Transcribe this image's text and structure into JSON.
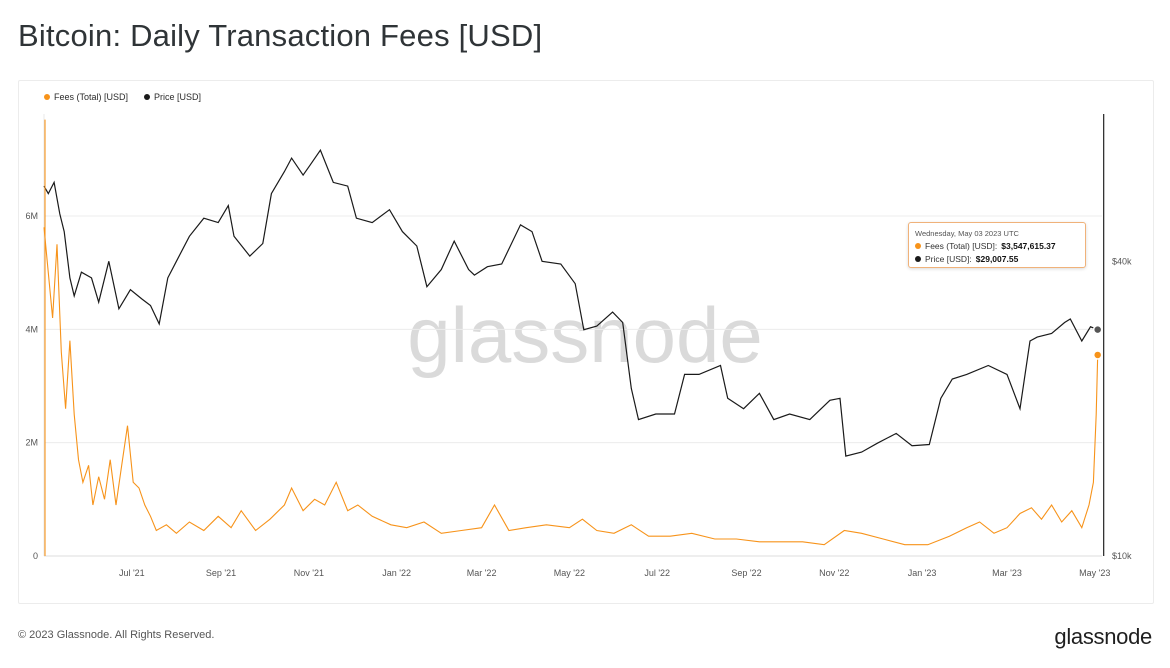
{
  "title": "Bitcoin: Daily Transaction Fees [USD]",
  "copyright": "© 2023 Glassnode. All Rights Reserved.",
  "logo_text": "glassnode",
  "watermark": "glassnode",
  "colors": {
    "fees": "#f7931a",
    "price": "#1a1a1a",
    "grid": "#ececec",
    "axis_text": "#555555"
  },
  "tooltip": {
    "date": "Wednesday, May 03 2023 UTC",
    "fees_label": "Fees (Total) [USD]:",
    "fees_value": "$3,547,615.37",
    "price_label": "Price [USD]:",
    "price_value": "$29,007.55"
  },
  "chart_data": {
    "type": "line",
    "title": "Bitcoin: Daily Transaction Fees [USD]",
    "legend_position": "top-left",
    "grid": true,
    "x_ticks": [
      "Jul '21",
      "Sep '21",
      "Nov '21",
      "Jan '22",
      "Mar '22",
      "May '22",
      "Jul '22",
      "Sep '22",
      "Nov '22",
      "Jan '23",
      "Mar '23",
      "May '23"
    ],
    "y_left": {
      "ticks": [
        "0",
        "2M",
        "4M",
        "6M"
      ],
      "tick_values": [
        0,
        2000000,
        4000000,
        6000000
      ],
      "range": [
        0,
        7800000
      ]
    },
    "y_right": {
      "scale": "log",
      "ticks": [
        "$10k",
        "$40k"
      ],
      "tick_values": [
        10000,
        40000
      ],
      "range": [
        10000,
        80000
      ]
    },
    "x_range": [
      "2021-05-01",
      "2023-05-06"
    ],
    "series": [
      {
        "name": "Fees (Total) [USD]",
        "axis": "left",
        "points": [
          [
            "2021-05-01",
            5800000
          ],
          [
            "2021-05-04",
            5000000
          ],
          [
            "2021-05-07",
            4200000
          ],
          [
            "2021-05-10",
            5500000
          ],
          [
            "2021-05-13",
            3600000
          ],
          [
            "2021-05-16",
            2600000
          ],
          [
            "2021-05-19",
            3800000
          ],
          [
            "2021-05-22",
            2500000
          ],
          [
            "2021-05-25",
            1700000
          ],
          [
            "2021-05-28",
            1300000
          ],
          [
            "2021-06-01",
            1600000
          ],
          [
            "2021-06-04",
            900000
          ],
          [
            "2021-06-08",
            1400000
          ],
          [
            "2021-06-12",
            1000000
          ],
          [
            "2021-06-16",
            1700000
          ],
          [
            "2021-06-20",
            900000
          ],
          [
            "2021-06-24",
            1600000
          ],
          [
            "2021-06-28",
            2300000
          ],
          [
            "2021-07-02",
            1300000
          ],
          [
            "2021-07-06",
            1200000
          ],
          [
            "2021-07-10",
            900000
          ],
          [
            "2021-07-14",
            700000
          ],
          [
            "2021-07-18",
            450000
          ],
          [
            "2021-07-25",
            550000
          ],
          [
            "2021-08-01",
            400000
          ],
          [
            "2021-08-10",
            600000
          ],
          [
            "2021-08-20",
            450000
          ],
          [
            "2021-08-30",
            700000
          ],
          [
            "2021-09-08",
            500000
          ],
          [
            "2021-09-15",
            800000
          ],
          [
            "2021-09-25",
            450000
          ],
          [
            "2021-10-05",
            650000
          ],
          [
            "2021-10-15",
            900000
          ],
          [
            "2021-10-20",
            1200000
          ],
          [
            "2021-10-28",
            800000
          ],
          [
            "2021-11-05",
            1000000
          ],
          [
            "2021-11-12",
            900000
          ],
          [
            "2021-11-20",
            1300000
          ],
          [
            "2021-11-28",
            800000
          ],
          [
            "2021-12-05",
            900000
          ],
          [
            "2021-12-15",
            700000
          ],
          [
            "2021-12-28",
            550000
          ],
          [
            "2022-01-08",
            500000
          ],
          [
            "2022-01-20",
            600000
          ],
          [
            "2022-02-01",
            400000
          ],
          [
            "2022-02-15",
            450000
          ],
          [
            "2022-03-01",
            500000
          ],
          [
            "2022-03-10",
            900000
          ],
          [
            "2022-03-20",
            450000
          ],
          [
            "2022-04-01",
            500000
          ],
          [
            "2022-04-15",
            550000
          ],
          [
            "2022-05-01",
            500000
          ],
          [
            "2022-05-10",
            650000
          ],
          [
            "2022-05-20",
            450000
          ],
          [
            "2022-06-01",
            400000
          ],
          [
            "2022-06-13",
            550000
          ],
          [
            "2022-06-25",
            350000
          ],
          [
            "2022-07-10",
            350000
          ],
          [
            "2022-07-25",
            400000
          ],
          [
            "2022-08-10",
            300000
          ],
          [
            "2022-08-25",
            300000
          ],
          [
            "2022-09-10",
            250000
          ],
          [
            "2022-09-25",
            250000
          ],
          [
            "2022-10-10",
            250000
          ],
          [
            "2022-10-25",
            200000
          ],
          [
            "2022-11-08",
            450000
          ],
          [
            "2022-11-20",
            400000
          ],
          [
            "2022-12-05",
            300000
          ],
          [
            "2022-12-20",
            200000
          ],
          [
            "2023-01-05",
            200000
          ],
          [
            "2023-01-20",
            350000
          ],
          [
            "2023-02-01",
            500000
          ],
          [
            "2023-02-10",
            600000
          ],
          [
            "2023-02-20",
            400000
          ],
          [
            "2023-03-01",
            500000
          ],
          [
            "2023-03-10",
            750000
          ],
          [
            "2023-03-18",
            850000
          ],
          [
            "2023-03-25",
            650000
          ],
          [
            "2023-04-01",
            900000
          ],
          [
            "2023-04-08",
            600000
          ],
          [
            "2023-04-15",
            800000
          ],
          [
            "2023-04-22",
            500000
          ],
          [
            "2023-04-27",
            900000
          ],
          [
            "2023-04-30",
            1300000
          ],
          [
            "2023-05-02",
            2500000
          ],
          [
            "2023-05-03",
            3547615
          ]
        ]
      },
      {
        "name": "Price [USD]",
        "axis": "right",
        "points": [
          [
            "2021-05-01",
            57000
          ],
          [
            "2021-05-04",
            55000
          ],
          [
            "2021-05-08",
            58000
          ],
          [
            "2021-05-12",
            50000
          ],
          [
            "2021-05-15",
            46000
          ],
          [
            "2021-05-19",
            37000
          ],
          [
            "2021-05-22",
            34000
          ],
          [
            "2021-05-27",
            38000
          ],
          [
            "2021-06-03",
            37000
          ],
          [
            "2021-06-08",
            33000
          ],
          [
            "2021-06-15",
            40000
          ],
          [
            "2021-06-22",
            32000
          ],
          [
            "2021-06-30",
            35000
          ],
          [
            "2021-07-08",
            33500
          ],
          [
            "2021-07-14",
            32500
          ],
          [
            "2021-07-20",
            29800
          ],
          [
            "2021-07-26",
            37000
          ],
          [
            "2021-08-01",
            40000
          ],
          [
            "2021-08-10",
            45000
          ],
          [
            "2021-08-20",
            49000
          ],
          [
            "2021-08-30",
            48000
          ],
          [
            "2021-09-06",
            52000
          ],
          [
            "2021-09-10",
            45000
          ],
          [
            "2021-09-21",
            41000
          ],
          [
            "2021-09-30",
            43500
          ],
          [
            "2021-10-06",
            55000
          ],
          [
            "2021-10-15",
            61000
          ],
          [
            "2021-10-20",
            65000
          ],
          [
            "2021-10-28",
            60000
          ],
          [
            "2021-11-02",
            63000
          ],
          [
            "2021-11-09",
            67500
          ],
          [
            "2021-11-18",
            58000
          ],
          [
            "2021-11-28",
            57000
          ],
          [
            "2021-12-04",
            49000
          ],
          [
            "2021-12-15",
            48000
          ],
          [
            "2021-12-27",
            51000
          ],
          [
            "2022-01-05",
            46000
          ],
          [
            "2022-01-15",
            43000
          ],
          [
            "2022-01-22",
            35500
          ],
          [
            "2022-02-01",
            38500
          ],
          [
            "2022-02-10",
            44000
          ],
          [
            "2022-02-20",
            38500
          ],
          [
            "2022-02-24",
            37500
          ],
          [
            "2022-03-05",
            39000
          ],
          [
            "2022-03-15",
            39500
          ],
          [
            "2022-03-28",
            47500
          ],
          [
            "2022-04-05",
            46000
          ],
          [
            "2022-04-12",
            40000
          ],
          [
            "2022-04-25",
            39500
          ],
          [
            "2022-05-05",
            36000
          ],
          [
            "2022-05-11",
            29000
          ],
          [
            "2022-05-20",
            29500
          ],
          [
            "2022-05-31",
            31500
          ],
          [
            "2022-06-07",
            30000
          ],
          [
            "2022-06-13",
            22000
          ],
          [
            "2022-06-18",
            19000
          ],
          [
            "2022-06-30",
            19500
          ],
          [
            "2022-07-13",
            19500
          ],
          [
            "2022-07-20",
            23500
          ],
          [
            "2022-07-30",
            23500
          ],
          [
            "2022-08-14",
            24500
          ],
          [
            "2022-08-19",
            21000
          ],
          [
            "2022-08-30",
            20000
          ],
          [
            "2022-09-10",
            21500
          ],
          [
            "2022-09-20",
            19000
          ],
          [
            "2022-10-01",
            19500
          ],
          [
            "2022-10-15",
            19000
          ],
          [
            "2022-10-29",
            20800
          ],
          [
            "2022-11-05",
            21000
          ],
          [
            "2022-11-09",
            16000
          ],
          [
            "2022-11-20",
            16300
          ],
          [
            "2022-12-01",
            17000
          ],
          [
            "2022-12-14",
            17800
          ],
          [
            "2022-12-25",
            16800
          ],
          [
            "2023-01-06",
            16900
          ],
          [
            "2023-01-14",
            21000
          ],
          [
            "2023-01-22",
            23000
          ],
          [
            "2023-02-01",
            23500
          ],
          [
            "2023-02-16",
            24500
          ],
          [
            "2023-03-01",
            23500
          ],
          [
            "2023-03-10",
            20000
          ],
          [
            "2023-03-17",
            27500
          ],
          [
            "2023-03-22",
            28000
          ],
          [
            "2023-04-01",
            28500
          ],
          [
            "2023-04-10",
            30000
          ],
          [
            "2023-04-14",
            30500
          ],
          [
            "2023-04-22",
            27500
          ],
          [
            "2023-04-28",
            29400
          ],
          [
            "2023-05-03",
            29007
          ]
        ]
      }
    ]
  }
}
